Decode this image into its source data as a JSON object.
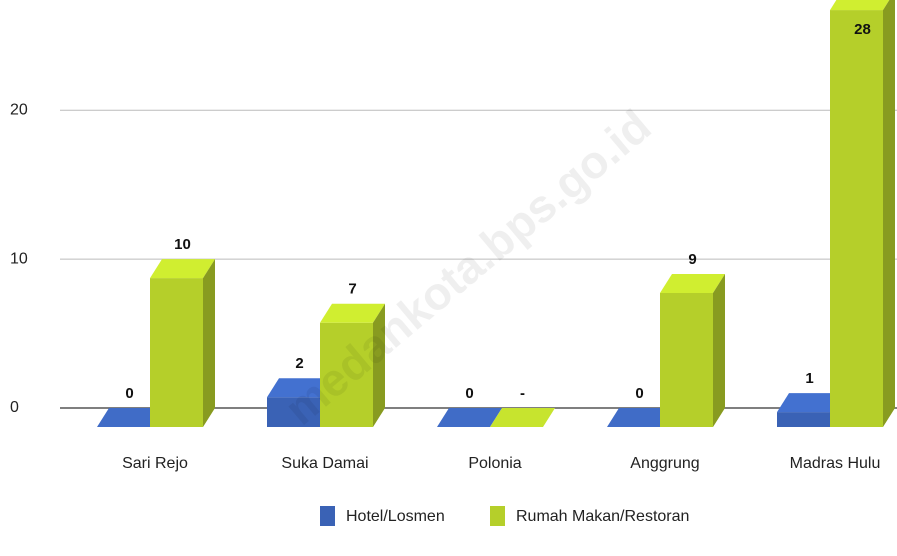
{
  "watermark": "medankota.bps.go.id",
  "chart_data": {
    "type": "bar3d",
    "categories": [
      "Sari Rejo",
      "Suka Damai",
      "Polonia",
      "Anggrung",
      "Madras Hulu"
    ],
    "series": [
      {
        "name": "Hotel/Losmen",
        "color": "#3a62b5",
        "values": [
          0,
          2,
          0,
          0,
          1
        ]
      },
      {
        "name": "Rumah Makan/Restoran",
        "color": "#b5cf2a",
        "values": [
          10,
          7,
          null,
          9,
          28
        ],
        "value_labels": [
          "10",
          "7",
          "-",
          "9",
          "28"
        ]
      }
    ],
    "ylim": [
      0,
      27.4
    ],
    "yticks": [
      0,
      10,
      20
    ],
    "grid": true,
    "legend": "bottom"
  }
}
